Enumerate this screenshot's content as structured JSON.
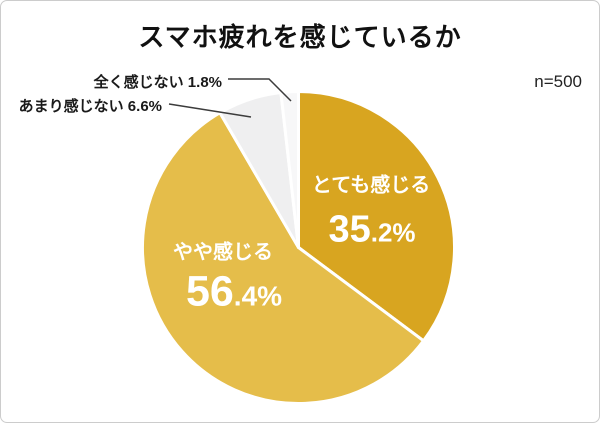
{
  "card": {
    "background": "#ffffff",
    "border_color": "#cccccc"
  },
  "header": {
    "sample_note": "n=500"
  },
  "chart_data": {
    "type": "pie",
    "title": "スマホ疲れを感じているか",
    "sample_size": 500,
    "start_angle": "top",
    "direction": "clockwise",
    "slice_gap_color": "#ffffff",
    "leader_line_color": "#3c3c3c",
    "slices": [
      {
        "label": "とても感じる",
        "value": 35.2,
        "display_pct_main": "35",
        "display_pct_rest": ".2%",
        "color": "#D8A520",
        "text_color": "#ffffff",
        "label_placement": "inside"
      },
      {
        "label": "やや感じる",
        "value": 56.4,
        "display_pct_main": "56",
        "display_pct_rest": ".4%",
        "color": "#E5BD4A",
        "text_color": "#ffffff",
        "label_placement": "inside"
      },
      {
        "label": "あまり感じない",
        "value": 6.6,
        "callout_text": "あまり感じない 6.6%",
        "color": "#EFEFF0",
        "label_placement": "outside"
      },
      {
        "label": "全く感じない",
        "value": 1.8,
        "callout_text": "全く感じない 1.8%",
        "color": "#F7F7F8",
        "label_placement": "outside"
      }
    ]
  }
}
